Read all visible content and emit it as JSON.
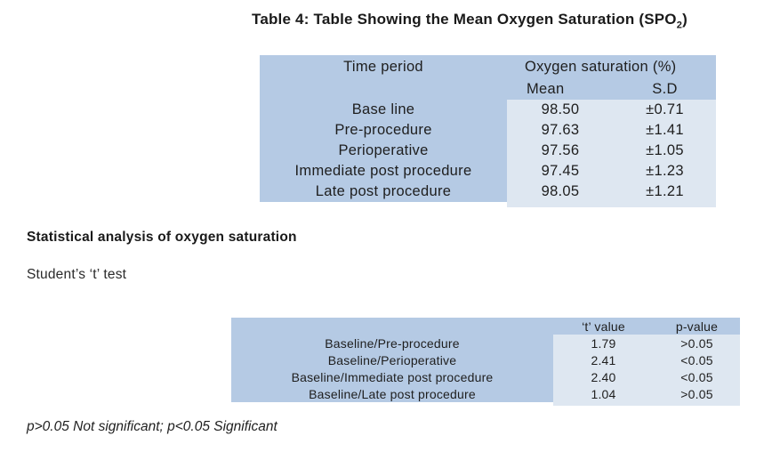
{
  "page": {
    "title": {
      "main": "Table 4: Table Showing the Mean Oxygen Saturation (SPO",
      "sub": "2",
      "end": ")"
    },
    "colors": {
      "table_header_blue": "#b5cae4",
      "table_cell_blue": "#dee7f1",
      "text": "#1e1e1e"
    }
  },
  "table1": {
    "col1_header": "Time period",
    "group_header": "Oxygen saturation (%)",
    "sub_headers": [
      "Mean",
      "S.D"
    ],
    "rows": [
      {
        "label": "Base line",
        "mean": "98.50",
        "sd": "±0.71"
      },
      {
        "label": "Pre-procedure",
        "mean": "97.63",
        "sd": "±1.41"
      },
      {
        "label": "Perioperative",
        "mean": "97.56",
        "sd": "±1.05"
      },
      {
        "label": "Immediate post procedure",
        "mean": "97.45",
        "sd": "±1.23"
      },
      {
        "label": "Late post procedure",
        "mean": "98.05",
        "sd": "±1.21"
      }
    ]
  },
  "sections": {
    "stat_heading": "Statistical analysis of oxygen saturation",
    "ttest_heading": "Student’s ‘t’ test"
  },
  "table2": {
    "headers": [
      "‘t’ value",
      "p-value"
    ],
    "rows": [
      {
        "label": "Baseline/Pre-procedure",
        "t": "1.79",
        "p": ">0.05"
      },
      {
        "label": "Baseline/Perioperative",
        "t": "2.41",
        "p": "<0.05"
      },
      {
        "label": "Baseline/Immediate post procedure",
        "t": "2.40",
        "p": "<0.05"
      },
      {
        "label": "Baseline/Late post procedure",
        "t": "1.04",
        "p": ">0.05"
      }
    ]
  },
  "footnote": "p>0.05 Not significant; p<0.05 Significant"
}
